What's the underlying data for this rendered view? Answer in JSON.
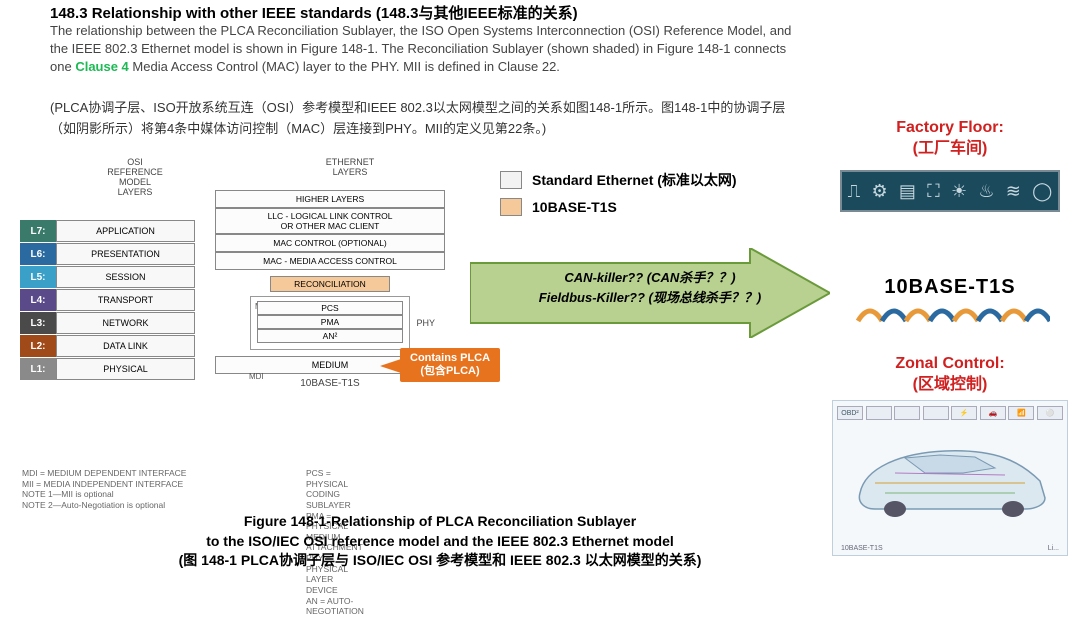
{
  "heading": "148.3 Relationship with other IEEE standards (148.3与其他IEEE标准的关系)",
  "para_before": "The relationship between the PLCA Reconciliation Sublayer, the ISO Open Systems Interconnection (OSI) Reference Model, and the IEEE 802.3 Ethernet model is shown in Figure 148-1. The Reconciliation Sublayer (shown shaded) in Figure 148-1 connects one ",
  "clause4": "Clause 4",
  "para_after": " Media Access Control (MAC) layer to the PHY. MII is defined in Clause 22.",
  "para_cn": "(PLCA协调子层、ISO开放系统互连（OSI）参考模型和IEEE 802.3以太网模型之间的关系如图148-1所示。图148-1中的协调子层（如阴影所示）将第4条中媒体访问控制（MAC）层连接到PHY。MII的定义见第22条。)",
  "legend": {
    "std_eth": "Standard Ethernet (标准以太网)",
    "t1s": "10BASE-T1S",
    "std_color": "#f3f3f3",
    "t1s_color": "#f5c99a"
  },
  "osi": {
    "col_label": "OSI\nREFERENCE\nMODEL\nLAYERS",
    "eth_label": "ETHERNET\nLAYERS",
    "layers": [
      {
        "tag": "L7:",
        "name": "APPLICATION",
        "color": "#3a7a6a"
      },
      {
        "tag": "L6:",
        "name": "PRESENTATION",
        "color": "#2a6aa0"
      },
      {
        "tag": "L5:",
        "name": "SESSION",
        "color": "#3aa0c8"
      },
      {
        "tag": "L4:",
        "name": "TRANSPORT",
        "color": "#5a4a8a"
      },
      {
        "tag": "L3:",
        "name": "NETWORK",
        "color": "#4a4a4a"
      },
      {
        "tag": "L2:",
        "name": "DATA LINK",
        "color": "#a04a1a"
      },
      {
        "tag": "L1:",
        "name": "PHYSICAL",
        "color": "#8a8a8a"
      }
    ],
    "eth_boxes": {
      "higher": "HIGHER LAYERS",
      "llc": "LLC - LOGICAL LINK CONTROL\nOR OTHER MAC CLIENT",
      "mac_ctrl": "MAC CONTROL (OPTIONAL)",
      "mac": "MAC - MEDIA ACCESS CONTROL",
      "recon": "RECONCILIATION",
      "pcs": "PCS",
      "pma": "PMA",
      "an": "AN²",
      "medium": "MEDIUM",
      "phy": "PHY",
      "mii1": "MII¹",
      "mdi": "MDI",
      "t1s": "10BASE-T1S"
    }
  },
  "notes": {
    "l1": "MDI = MEDIUM DEPENDENT INTERFACE",
    "l2": "MII = MEDIA INDEPENDENT INTERFACE",
    "l3": "NOTE 1—MII is optional",
    "l4": "NOTE 2—Auto-Negotiation is optional",
    "r1": "PCS = PHYSICAL CODING SUBLAYER",
    "r2": "PMA = PHYSICAL MEDIUM ATTACHMENT",
    "r3": "PHY = PHYSICAL LAYER DEVICE",
    "r4": "AN = AUTO-NEGOTIATION"
  },
  "arrow": {
    "fill": "#b8d090",
    "stroke": "#6a9a3a",
    "l1": "CAN-killer?? (CAN杀手？？)",
    "l2": "Fieldbus-Killer?? (现场总线杀手？？)"
  },
  "callout": {
    "l1": "Contains PLCA",
    "l2": "(包含PLCA)"
  },
  "right": {
    "factory_en": "Factory Floor:",
    "factory_cn": "(工厂车间)",
    "zonal_en": "Zonal Control:",
    "zonal_cn": "(区域控制)"
  },
  "logo": {
    "text": "10BASE-T1S",
    "colors": [
      "#e89a3a",
      "#2a6aa0",
      "#e89a3a",
      "#2a6aa0",
      "#e89a3a",
      "#2a6aa0",
      "#e89a3a",
      "#2a6aa0"
    ]
  },
  "factory_icons": [
    "⎍",
    "⚙",
    "▤",
    "⛶",
    "☀",
    "♨",
    "≋",
    "◯"
  ],
  "car_chips": [
    "OBD²",
    "",
    "",
    "",
    "⚡",
    "🚗",
    "📶",
    "⚪"
  ],
  "car_footer_l": "10BASE-T1S",
  "car_footer_r": "Li...",
  "caption": {
    "l1": "Figure 148-1-Relationship of PLCA Reconciliation Sublayer",
    "l2": "to the ISO/IEC OSI reference model and the IEEE 802.3 Ethernet model",
    "l3": "(图 148-1 PLCA协调子层与 ISO/IEC OSI 参考模型和 IEEE 802.3 以太网模型的关系)"
  }
}
